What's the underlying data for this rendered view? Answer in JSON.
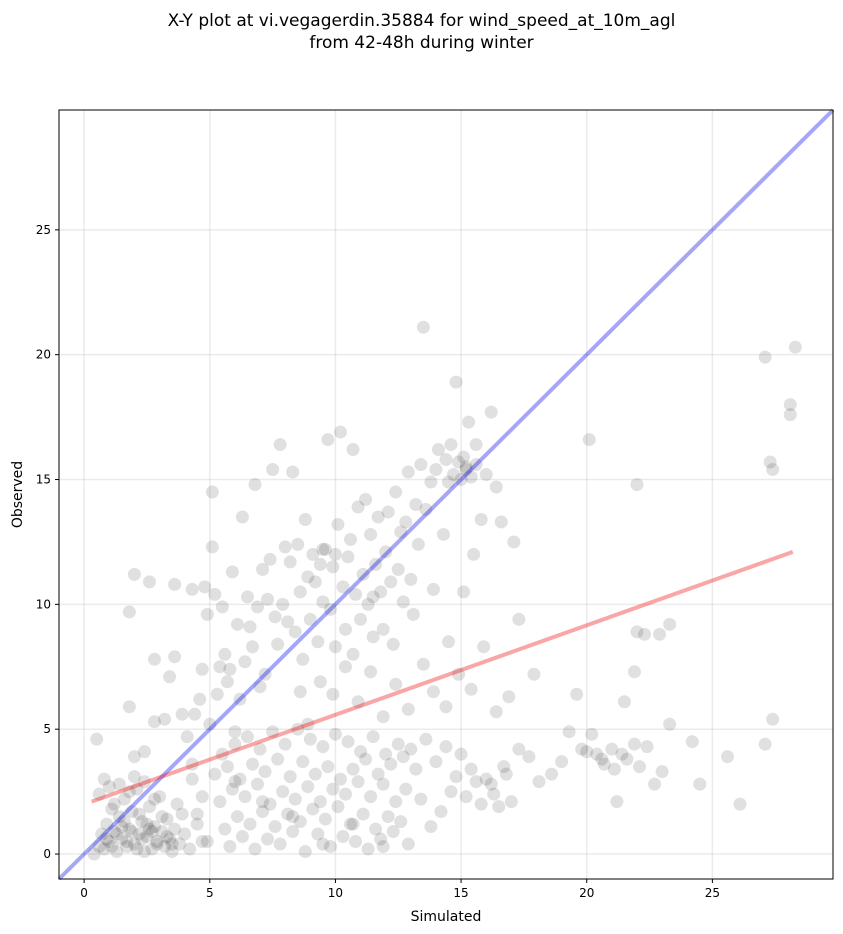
{
  "chart_data": {
    "type": "scatter",
    "title_line1": "X-Y plot at vi.vegagerdin.35884 for wind_speed_at_10m_agl",
    "title_line2": "from 42-48h during winter",
    "xlabel": "Simulated",
    "ylabel": "Observed",
    "xlim": [
      -1,
      29.8
    ],
    "ylim": [
      -1,
      29.8
    ],
    "xticks": [
      0,
      5,
      10,
      15,
      20,
      25
    ],
    "yticks": [
      0,
      5,
      10,
      15,
      20,
      25
    ],
    "grid": true,
    "point_color": "#000000",
    "identity_line_color": "#0000ee",
    "fit_line_color": "#ee0000",
    "identity_line": [
      [
        -1,
        -1
      ],
      [
        29.8,
        29.8
      ]
    ],
    "fit_line": [
      [
        0.3,
        2.1
      ],
      [
        28.2,
        12.1
      ]
    ],
    "points": [
      [
        0.4,
        0.0
      ],
      [
        0.6,
        0.3
      ],
      [
        0.7,
        0.8
      ],
      [
        0.8,
        0.2
      ],
      [
        0.9,
        1.2
      ],
      [
        1.0,
        0.5
      ],
      [
        1.1,
        1.8
      ],
      [
        1.2,
        0.9
      ],
      [
        1.3,
        0.1
      ],
      [
        1.4,
        1.5
      ],
      [
        1.5,
        0.6
      ],
      [
        1.6,
        2.2
      ],
      [
        1.7,
        0.3
      ],
      [
        1.8,
        1.0
      ],
      [
        1.9,
        1.7
      ],
      [
        2.0,
        0.4
      ],
      [
        2.1,
        2.6
      ],
      [
        2.2,
        0.8
      ],
      [
        2.3,
        1.3
      ],
      [
        2.4,
        0.1
      ],
      [
        2.5,
        0.7
      ],
      [
        2.6,
        1.9
      ],
      [
        2.7,
        0.2
      ],
      [
        2.8,
        1.1
      ],
      [
        2.9,
        0.5
      ],
      [
        3.0,
        2.3
      ],
      [
        3.1,
        0.9
      ],
      [
        3.2,
        0.3
      ],
      [
        3.3,
        1.4
      ],
      [
        3.4,
        0.6
      ],
      [
        3.5,
        0.1
      ],
      [
        3.6,
        1.0
      ],
      [
        3.7,
        2.0
      ],
      [
        3.8,
        0.4
      ],
      [
        3.9,
        1.6
      ],
      [
        4.0,
        0.8
      ],
      [
        4.2,
        0.2
      ],
      [
        4.3,
        3.0
      ],
      [
        4.5,
        1.2
      ],
      [
        4.7,
        0.5
      ],
      [
        0.9,
        0.6
      ],
      [
        1.1,
        0.3
      ],
      [
        1.3,
        0.8
      ],
      [
        1.5,
        1.1
      ],
      [
        1.7,
        0.5
      ],
      [
        1.9,
        0.9
      ],
      [
        2.1,
        0.2
      ],
      [
        2.3,
        0.6
      ],
      [
        2.5,
        1.2
      ],
      [
        2.7,
        0.9
      ],
      [
        2.9,
        0.4
      ],
      [
        3.1,
        1.5
      ],
      [
        3.3,
        0.7
      ],
      [
        3.5,
        0.4
      ],
      [
        1.0,
        2.7
      ],
      [
        1.2,
        2.0
      ],
      [
        1.4,
        2.8
      ],
      [
        1.6,
        1.3
      ],
      [
        1.8,
        2.5
      ],
      [
        2.0,
        3.1
      ],
      [
        2.2,
        1.6
      ],
      [
        2.4,
        2.9
      ],
      [
        2.6,
        1.0
      ],
      [
        2.8,
        2.2
      ],
      [
        0.6,
        2.4
      ],
      [
        0.8,
        3.0
      ],
      [
        0.5,
        4.6
      ],
      [
        1.8,
        5.9
      ],
      [
        1.8,
        9.7
      ],
      [
        2.0,
        11.2
      ],
      [
        2.6,
        10.9
      ],
      [
        2.8,
        7.8
      ],
      [
        2.8,
        5.3
      ],
      [
        2.0,
        3.9
      ],
      [
        2.4,
        4.1
      ],
      [
        3.2,
        5.4
      ],
      [
        3.4,
        7.1
      ],
      [
        3.6,
        7.9
      ],
      [
        3.6,
        10.8
      ],
      [
        3.9,
        5.6
      ],
      [
        4.1,
        4.7
      ],
      [
        4.3,
        10.6
      ],
      [
        4.4,
        5.6
      ],
      [
        4.6,
        6.2
      ],
      [
        4.7,
        7.4
      ],
      [
        4.8,
        10.7
      ],
      [
        4.9,
        9.6
      ],
      [
        5.0,
        5.2
      ],
      [
        5.1,
        14.5
      ],
      [
        5.1,
        12.3
      ],
      [
        5.2,
        10.4
      ],
      [
        5.3,
        6.4
      ],
      [
        5.4,
        7.5
      ],
      [
        5.5,
        9.9
      ],
      [
        5.6,
        8.0
      ],
      [
        5.7,
        6.9
      ],
      [
        5.8,
        7.4
      ],
      [
        5.9,
        11.3
      ],
      [
        6.0,
        4.9
      ],
      [
        6.1,
        9.2
      ],
      [
        6.2,
        6.2
      ],
      [
        6.3,
        13.5
      ],
      [
        6.4,
        7.7
      ],
      [
        6.5,
        10.3
      ],
      [
        6.6,
        9.1
      ],
      [
        6.7,
        8.3
      ],
      [
        6.8,
        14.8
      ],
      [
        6.9,
        9.9
      ],
      [
        7.0,
        6.7
      ],
      [
        7.1,
        11.4
      ],
      [
        7.2,
        7.2
      ],
      [
        7.3,
        10.2
      ],
      [
        7.4,
        11.8
      ],
      [
        7.5,
        15.4
      ],
      [
        7.6,
        9.5
      ],
      [
        7.7,
        8.4
      ],
      [
        7.8,
        16.4
      ],
      [
        7.9,
        10.0
      ],
      [
        8.0,
        12.3
      ],
      [
        8.1,
        9.3
      ],
      [
        8.2,
        11.7
      ],
      [
        8.3,
        15.3
      ],
      [
        8.4,
        8.9
      ],
      [
        8.5,
        12.4
      ],
      [
        8.6,
        10.5
      ],
      [
        8.7,
        7.8
      ],
      [
        8.8,
        13.4
      ],
      [
        8.9,
        11.1
      ],
      [
        9.0,
        9.4
      ],
      [
        9.1,
        12.0
      ],
      [
        9.2,
        10.9
      ],
      [
        9.3,
        8.5
      ],
      [
        9.4,
        11.6
      ],
      [
        9.5,
        10.1
      ],
      [
        9.6,
        12.2
      ],
      [
        9.7,
        16.6
      ],
      [
        9.8,
        9.8
      ],
      [
        9.9,
        11.5
      ],
      [
        10.0,
        8.3
      ],
      [
        10.1,
        13.2
      ],
      [
        10.2,
        16.9
      ],
      [
        10.3,
        10.7
      ],
      [
        10.4,
        9.0
      ],
      [
        10.5,
        11.9
      ],
      [
        10.6,
        12.6
      ],
      [
        10.7,
        8.0
      ],
      [
        10.8,
        10.4
      ],
      [
        10.9,
        13.9
      ],
      [
        11.0,
        9.4
      ],
      [
        11.1,
        11.2
      ],
      [
        11.2,
        14.2
      ],
      [
        11.3,
        10.0
      ],
      [
        11.4,
        12.8
      ],
      [
        11.5,
        8.7
      ],
      [
        11.6,
        11.6
      ],
      [
        11.7,
        13.5
      ],
      [
        11.8,
        10.5
      ],
      [
        11.9,
        9.0
      ],
      [
        12.0,
        12.1
      ],
      [
        12.1,
        13.7
      ],
      [
        12.2,
        10.9
      ],
      [
        12.3,
        8.4
      ],
      [
        12.4,
        14.5
      ],
      [
        12.5,
        11.4
      ],
      [
        12.6,
        12.9
      ],
      [
        12.7,
        10.1
      ],
      [
        12.8,
        13.3
      ],
      [
        12.9,
        15.3
      ],
      [
        13.0,
        11.0
      ],
      [
        13.1,
        9.6
      ],
      [
        13.2,
        14.0
      ],
      [
        13.3,
        12.4
      ],
      [
        13.4,
        15.6
      ],
      [
        13.5,
        21.1
      ],
      [
        13.6,
        13.8
      ],
      [
        13.8,
        14.9
      ],
      [
        14.0,
        15.4
      ],
      [
        14.1,
        16.2
      ],
      [
        14.3,
        12.8
      ],
      [
        14.4,
        15.8
      ],
      [
        14.5,
        14.9
      ],
      [
        14.6,
        16.4
      ],
      [
        14.7,
        15.2
      ],
      [
        14.8,
        18.9
      ],
      [
        14.9,
        15.7
      ],
      [
        15.0,
        15.0
      ],
      [
        15.1,
        15.9
      ],
      [
        15.2,
        15.5
      ],
      [
        15.3,
        17.3
      ],
      [
        15.4,
        15.1
      ],
      [
        15.5,
        12.0
      ],
      [
        15.6,
        16.4
      ],
      [
        15.8,
        13.4
      ],
      [
        16.0,
        15.2
      ],
      [
        16.2,
        17.7
      ],
      [
        16.4,
        14.7
      ],
      [
        16.6,
        13.3
      ],
      [
        17.1,
        12.5
      ],
      [
        15.6,
        15.6
      ],
      [
        15.2,
        15.4
      ],
      [
        5.2,
        3.2
      ],
      [
        5.4,
        2.1
      ],
      [
        5.5,
        4.0
      ],
      [
        5.6,
        1.0
      ],
      [
        5.7,
        3.5
      ],
      [
        5.8,
        0.3
      ],
      [
        5.9,
        2.6
      ],
      [
        6.0,
        4.4
      ],
      [
        6.1,
        1.5
      ],
      [
        6.2,
        3.0
      ],
      [
        6.3,
        0.7
      ],
      [
        6.4,
        2.3
      ],
      [
        6.5,
        4.7
      ],
      [
        6.6,
        1.2
      ],
      [
        6.7,
        3.6
      ],
      [
        6.8,
        0.2
      ],
      [
        6.9,
        2.8
      ],
      [
        7.0,
        4.2
      ],
      [
        7.1,
        1.7
      ],
      [
        7.2,
        3.3
      ],
      [
        7.3,
        0.6
      ],
      [
        7.4,
        2.0
      ],
      [
        7.5,
        4.9
      ],
      [
        7.6,
        1.1
      ],
      [
        7.7,
        3.8
      ],
      [
        7.8,
        0.4
      ],
      [
        7.9,
        2.5
      ],
      [
        8.0,
        4.4
      ],
      [
        8.1,
        1.6
      ],
      [
        8.2,
        3.1
      ],
      [
        8.3,
        0.9
      ],
      [
        8.4,
        2.2
      ],
      [
        8.5,
        5.0
      ],
      [
        8.6,
        1.3
      ],
      [
        8.7,
        3.7
      ],
      [
        8.8,
        0.1
      ],
      [
        8.9,
        2.7
      ],
      [
        9.0,
        4.6
      ],
      [
        9.1,
        1.8
      ],
      [
        9.2,
        3.2
      ],
      [
        9.3,
        0.8
      ],
      [
        9.4,
        2.1
      ],
      [
        9.5,
        4.3
      ],
      [
        9.6,
        1.4
      ],
      [
        9.7,
        3.5
      ],
      [
        9.8,
        0.3
      ],
      [
        9.9,
        2.6
      ],
      [
        10.0,
        4.8
      ],
      [
        10.1,
        1.9
      ],
      [
        10.2,
        3.0
      ],
      [
        10.3,
        0.7
      ],
      [
        10.4,
        2.4
      ],
      [
        10.5,
        4.5
      ],
      [
        10.6,
        1.2
      ],
      [
        10.7,
        3.4
      ],
      [
        10.8,
        0.5
      ],
      [
        10.9,
        2.9
      ],
      [
        11.0,
        4.1
      ],
      [
        11.1,
        1.6
      ],
      [
        11.2,
        3.8
      ],
      [
        11.3,
        0.2
      ],
      [
        11.4,
        2.3
      ],
      [
        11.5,
        4.7
      ],
      [
        11.6,
        1.0
      ],
      [
        11.7,
        3.2
      ],
      [
        11.8,
        0.6
      ],
      [
        11.9,
        2.8
      ],
      [
        12.0,
        4.0
      ],
      [
        12.1,
        1.5
      ],
      [
        12.2,
        3.6
      ],
      [
        12.3,
        0.9
      ],
      [
        12.4,
        2.1
      ],
      [
        12.5,
        4.4
      ],
      [
        12.6,
        1.3
      ],
      [
        12.7,
        3.9
      ],
      [
        12.8,
        2.6
      ],
      [
        12.9,
        0.4
      ],
      [
        13.0,
        4.2
      ],
      [
        13.2,
        3.4
      ],
      [
        13.4,
        2.2
      ],
      [
        13.6,
        4.6
      ],
      [
        13.8,
        1.1
      ],
      [
        14.0,
        3.7
      ],
      [
        14.2,
        1.7
      ],
      [
        14.4,
        4.3
      ],
      [
        14.6,
        2.5
      ],
      [
        14.8,
        3.1
      ],
      [
        15.0,
        4.0
      ],
      [
        15.2,
        2.3
      ],
      [
        15.4,
        3.4
      ],
      [
        15.6,
        2.9
      ],
      [
        15.8,
        2.0
      ],
      [
        16.0,
        3.0
      ],
      [
        16.3,
        2.4
      ],
      [
        16.5,
        1.9
      ],
      [
        16.8,
        3.2
      ],
      [
        17.0,
        2.1
      ],
      [
        6.0,
        2.9
      ],
      [
        7.1,
        2.1
      ],
      [
        8.3,
        1.5
      ],
      [
        9.5,
        0.4
      ],
      [
        10.7,
        1.2
      ],
      [
        11.9,
        0.3
      ],
      [
        4.9,
        0.5
      ],
      [
        4.7,
        2.3
      ],
      [
        4.5,
        1.6
      ],
      [
        4.3,
        3.6
      ],
      [
        8.6,
        6.5
      ],
      [
        8.9,
        5.2
      ],
      [
        9.4,
        6.9
      ],
      [
        9.9,
        6.4
      ],
      [
        10.4,
        7.5
      ],
      [
        10.9,
        6.1
      ],
      [
        11.4,
        7.3
      ],
      [
        11.9,
        5.5
      ],
      [
        12.4,
        6.8
      ],
      [
        12.9,
        5.8
      ],
      [
        13.5,
        7.6
      ],
      [
        13.9,
        6.5
      ],
      [
        14.4,
        5.9
      ],
      [
        14.9,
        7.2
      ],
      [
        15.4,
        6.6
      ],
      [
        15.9,
        8.3
      ],
      [
        16.4,
        5.7
      ],
      [
        16.9,
        6.3
      ],
      [
        17.3,
        9.4
      ],
      [
        17.9,
        7.2
      ],
      [
        15.1,
        10.5
      ],
      [
        14.5,
        8.5
      ],
      [
        13.9,
        10.6
      ],
      [
        16.2,
        2.8
      ],
      [
        16.7,
        3.5
      ],
      [
        17.3,
        4.2
      ],
      [
        17.7,
        3.9
      ],
      [
        18.1,
        2.9
      ],
      [
        18.6,
        3.2
      ],
      [
        19.0,
        3.7
      ],
      [
        19.3,
        4.9
      ],
      [
        19.6,
        6.4
      ],
      [
        19.8,
        4.2
      ],
      [
        20.2,
        4.8
      ],
      [
        20.4,
        4.0
      ],
      [
        20.7,
        3.6
      ],
      [
        21.0,
        4.2
      ],
      [
        21.2,
        2.1
      ],
      [
        21.4,
        4.0
      ],
      [
        21.6,
        3.8
      ],
      [
        21.9,
        4.4
      ],
      [
        22.1,
        3.5
      ],
      [
        22.4,
        4.3
      ],
      [
        22.7,
        2.8
      ],
      [
        23.0,
        3.3
      ],
      [
        23.3,
        5.2
      ],
      [
        24.2,
        4.5
      ],
      [
        24.5,
        2.8
      ],
      [
        25.6,
        3.9
      ],
      [
        26.1,
        2.0
      ],
      [
        27.1,
        4.4
      ],
      [
        27.4,
        5.4
      ],
      [
        20.1,
        16.6
      ],
      [
        22.0,
        14.8
      ],
      [
        21.5,
        6.1
      ],
      [
        21.9,
        7.3
      ],
      [
        22.0,
        8.9
      ],
      [
        22.3,
        8.8
      ],
      [
        22.9,
        8.8
      ],
      [
        23.3,
        9.2
      ],
      [
        20.6,
        3.8
      ],
      [
        21.1,
        3.4
      ],
      [
        20.0,
        4.1
      ],
      [
        27.3,
        15.7
      ],
      [
        27.4,
        15.4
      ],
      [
        28.1,
        17.6
      ],
      [
        28.1,
        18.0
      ],
      [
        28.3,
        20.3
      ],
      [
        27.1,
        19.9
      ],
      [
        10.7,
        16.2
      ],
      [
        9.5,
        12.2
      ],
      [
        10.0,
        12.0
      ],
      [
        11.5,
        10.3
      ]
    ]
  }
}
